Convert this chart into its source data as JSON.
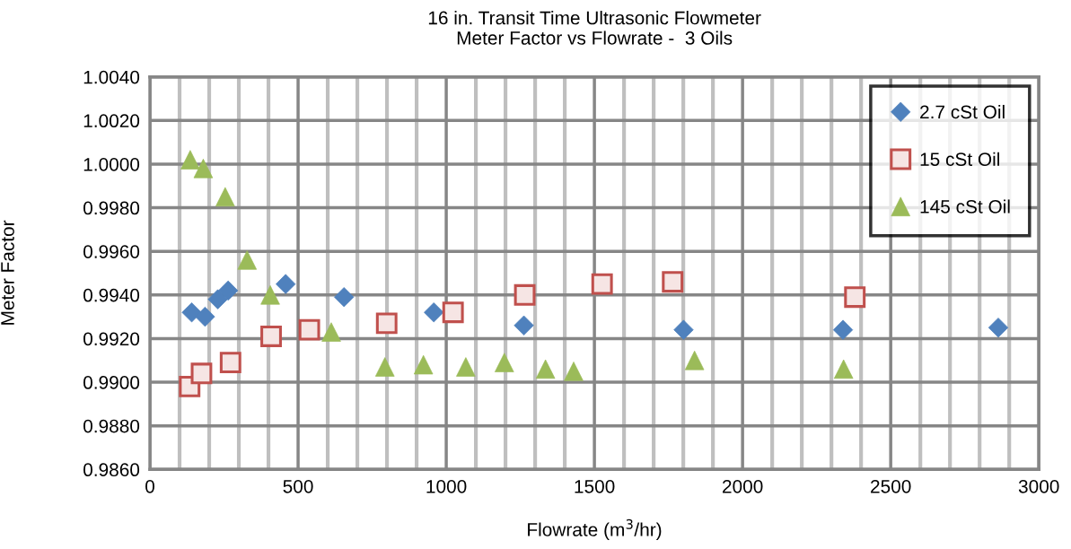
{
  "chart_data": {
    "type": "scatter",
    "title": "16 in. Transit Time Ultrasonic Flowmeter\nMeter Factor vs Flowrate -  3 Oils",
    "xlabel": "Flowrate (m$^{3}$/hr)",
    "ylabel": "Meter Factor",
    "xlim": [
      0,
      3000
    ],
    "xticks": [
      0,
      {
        "value": 100,
        "label": null
      },
      {
        "value": 200,
        "label": null
      },
      {
        "value": 300,
        "label": null
      },
      {
        "value": 400,
        "label": null
      },
      500,
      {
        "value": 600,
        "label": null
      },
      {
        "value": 700,
        "label": null
      },
      {
        "value": 800,
        "label": null
      },
      {
        "value": 900,
        "label": null
      },
      1000,
      {
        "value": 1100,
        "label": null
      },
      {
        "value": 1200,
        "label": null
      },
      {
        "value": 1300,
        "label": null
      },
      {
        "value": 1400,
        "label": null
      },
      1500,
      {
        "value": 1600,
        "label": null
      },
      {
        "value": 1700,
        "label": null
      },
      {
        "value": 1800,
        "label": null
      },
      {
        "value": 1900,
        "label": null
      },
      2000,
      {
        "value": 2100,
        "label": null
      },
      {
        "value": 2200,
        "label": null
      },
      {
        "value": 2300,
        "label": null
      },
      {
        "value": 2400,
        "label": null
      },
      2500,
      {
        "value": 2600,
        "label": null
      },
      {
        "value": 2700,
        "label": null
      },
      {
        "value": 2800,
        "label": null
      },
      {
        "value": 2900,
        "label": null
      },
      3000
    ],
    "ylim": [
      0.986,
      1.004
    ],
    "yticks": [
      {
        "value": 0.986,
        "label": "0.9860"
      },
      {
        "value": 0.988,
        "label": "0.9880"
      },
      {
        "value": 0.99,
        "label": "0.9900"
      },
      {
        "value": 0.992,
        "label": "0.9920"
      },
      {
        "value": 0.994,
        "label": "0.9940"
      },
      {
        "value": 0.996,
        "label": "0.9960"
      },
      {
        "value": 0.998,
        "label": "0.9980"
      },
      {
        "value": 1.0,
        "label": "1.0000"
      },
      {
        "value": 1.002,
        "label": "1.0020"
      },
      {
        "value": 1.004,
        "label": "1.0040"
      }
    ],
    "grid": true,
    "legend": "top right",
    "series": [
      {
        "name": "2.7 cSt Oil",
        "color": "#4f81bd",
        "marker": "diamond",
        "x": [
          141,
          186,
          229,
          264,
          458,
          655,
          958,
          1262,
          1801,
          2339,
          2863
        ],
        "values": [
          0.9932,
          0.993,
          0.9938,
          0.9942,
          0.9945,
          0.9939,
          0.9932,
          0.9926,
          0.9924,
          0.9924,
          0.9925
        ]
      },
      {
        "name": "15 cSt Oil",
        "color": "#c0504d",
        "marker": "square",
        "x": [
          134,
          174,
          272,
          409,
          538,
          799,
          1023,
          1265,
          1526,
          1764,
          2379
        ],
        "values": [
          0.9898,
          0.9904,
          0.9909,
          0.9921,
          0.9924,
          0.9927,
          0.9932,
          0.994,
          0.9945,
          0.9946,
          0.9939
        ]
      },
      {
        "name": "145 cSt Oil",
        "color": "#9bbb59",
        "marker": "triangle",
        "x": [
          136,
          180,
          254,
          328,
          406,
          612,
          793,
          923,
          1066,
          1196,
          1335,
          1430,
          1838,
          2341
        ],
        "values": [
          1.0002,
          0.9998,
          0.9985,
          0.9956,
          0.994,
          0.9923,
          0.9907,
          0.9908,
          0.9907,
          0.9909,
          0.9906,
          0.9905,
          0.991,
          0.9906
        ]
      }
    ]
  }
}
